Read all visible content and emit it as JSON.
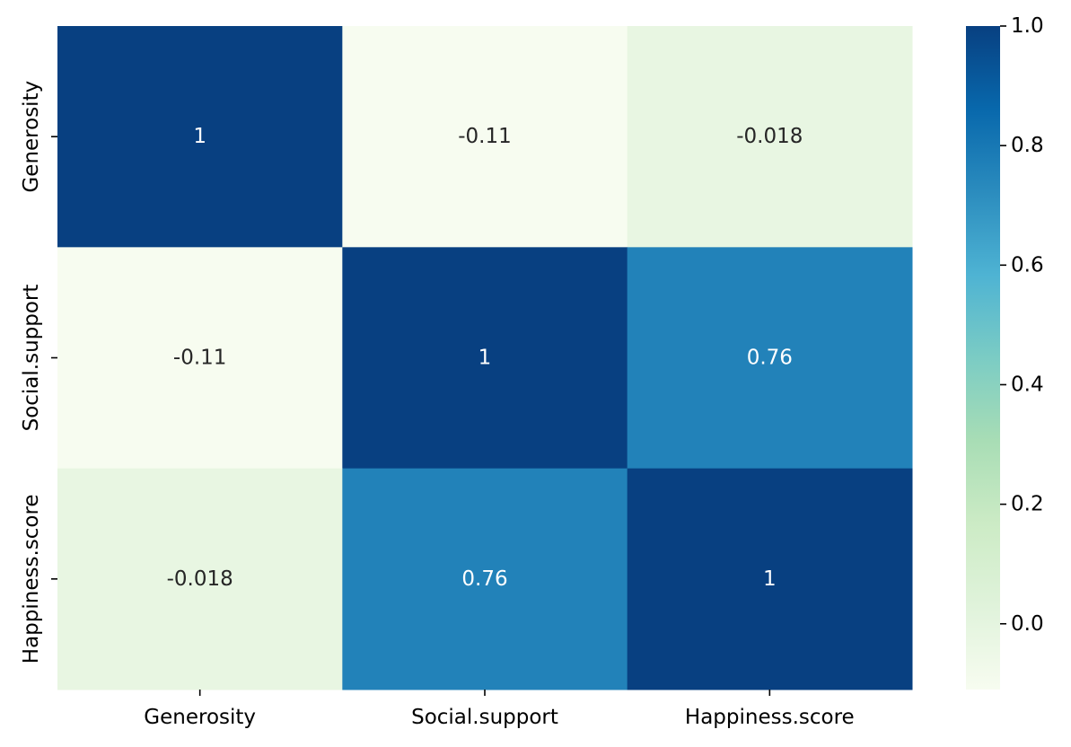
{
  "chart_data": {
    "type": "heatmap",
    "title": "",
    "xlabel": "",
    "ylabel": "",
    "x_categories": [
      "Generosity",
      "Social.support",
      "Happiness.score"
    ],
    "y_categories": [
      "Generosity",
      "Social.support",
      "Happiness.score"
    ],
    "values": [
      [
        1,
        -0.11,
        -0.018
      ],
      [
        -0.11,
        1,
        0.76
      ],
      [
        -0.018,
        0.76,
        1
      ]
    ],
    "annotations": [
      [
        "1",
        "-0.11",
        "-0.018"
      ],
      [
        "-0.11",
        "1",
        "0.76"
      ],
      [
        "-0.018",
        "0.76",
        "1"
      ]
    ],
    "colormap": "GnBu",
    "color_range": [
      -0.11,
      1
    ],
    "colorbar": {
      "ticks": [
        0.0,
        0.2,
        0.4,
        0.6,
        0.8,
        1.0
      ],
      "tick_labels": [
        "0.0",
        "0.2",
        "0.4",
        "0.6",
        "0.8",
        "1.0"
      ],
      "placement": "right"
    },
    "colorscale_stops": [
      "#f7fcf0",
      "#e0f3db",
      "#ccebc5",
      "#a8ddb5",
      "#7bccc4",
      "#4eb3d3",
      "#2b8cbe",
      "#0868ac",
      "#084081"
    ],
    "annotation_colors": {
      "dark_text": "#262626",
      "light_text": "#ffffff"
    },
    "grid": false
  }
}
